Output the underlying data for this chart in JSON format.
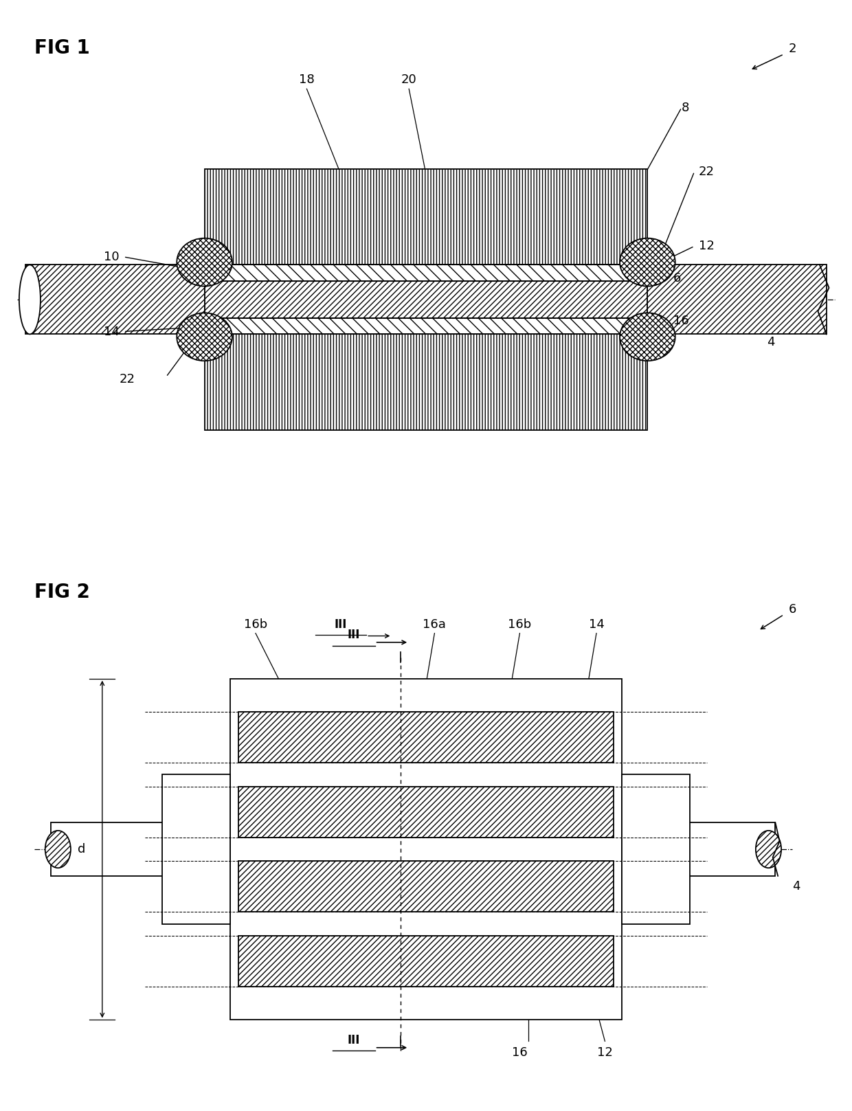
{
  "fig_title_1": "FIG 1",
  "fig_title_2": "FIG 2",
  "label_2": "2",
  "label_4": "4",
  "label_6": "6",
  "label_8": "8",
  "label_10": "10",
  "label_12": "12",
  "label_14": "14",
  "label_16": "16",
  "label_18": "18",
  "label_20": "20",
  "label_22": "22",
  "label_16a": "16a",
  "label_16b": "16b",
  "label_III": "III",
  "label_d": "d",
  "bg_color": "#ffffff",
  "line_color": "#000000"
}
